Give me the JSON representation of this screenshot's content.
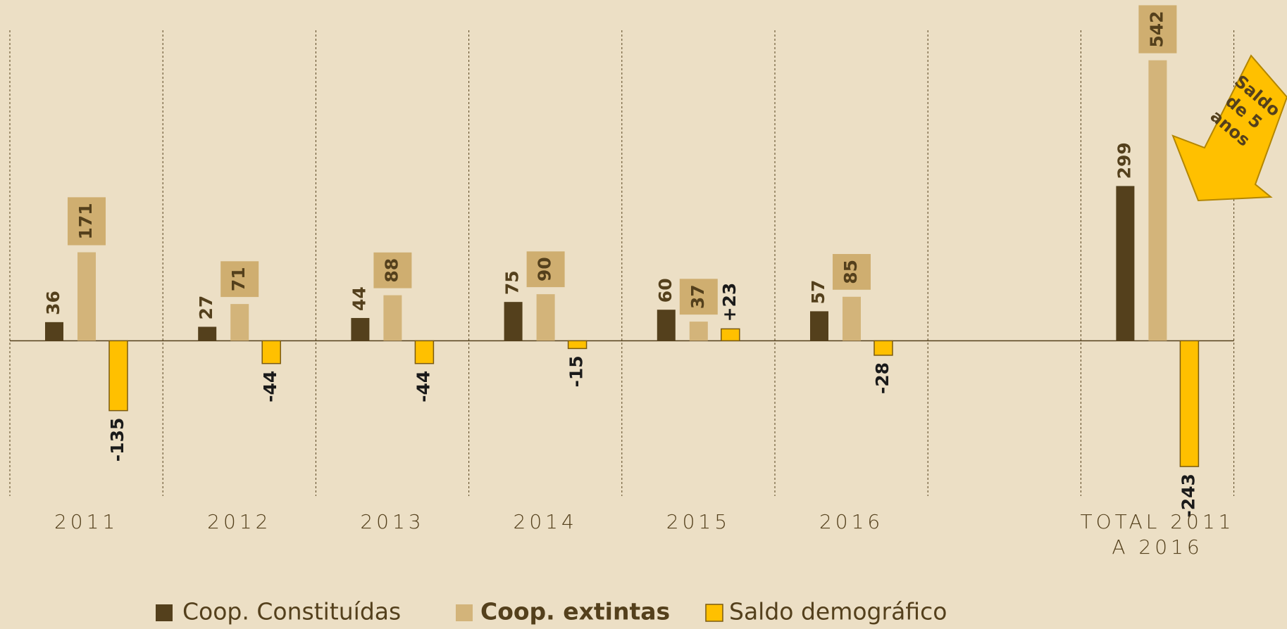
{
  "chart_data": {
    "type": "bar",
    "categories": [
      "2011",
      "2012",
      "2013",
      "2014",
      "2015",
      "2016",
      null,
      "TOTAL 2011 A 2016"
    ],
    "series": [
      {
        "name": "Coop. Constituídas",
        "color": "#54401c",
        "values": [
          36,
          27,
          44,
          75,
          60,
          57,
          null,
          299
        ]
      },
      {
        "name": "Coop. extintas",
        "color": "#d3b47a",
        "values": [
          171,
          71,
          88,
          90,
          37,
          85,
          null,
          542
        ]
      },
      {
        "name": "Saldo demográfico",
        "color": "#ffc000",
        "values": [
          -135,
          -44,
          -44,
          -15,
          23,
          -28,
          null,
          -243
        ],
        "value_labels": [
          "-135",
          "-44",
          "-44",
          "-15",
          "+23",
          "-28",
          null,
          "-243"
        ]
      }
    ],
    "ylim": [
      -300,
      600
    ],
    "annotation": [
      "Saldo",
      "de 5",
      "anos"
    ]
  }
}
